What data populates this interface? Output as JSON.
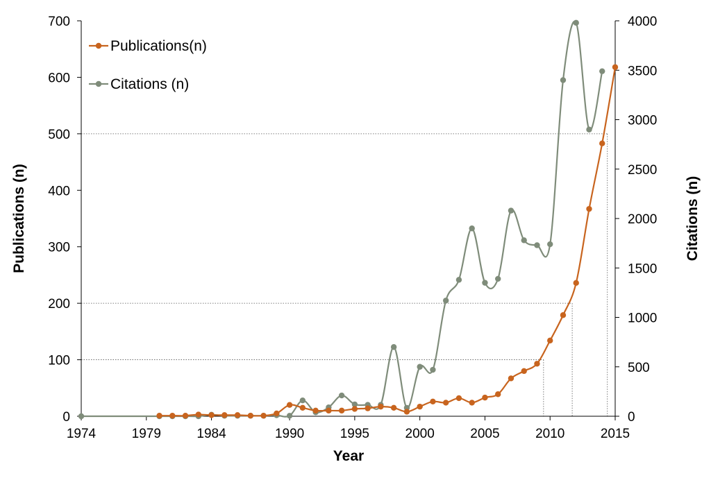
{
  "chart_data": {
    "type": "line",
    "xlabel": "Year",
    "ylabel_left": "Publications (n)",
    "ylabel_right": "Citations (n)",
    "xlim": [
      1974,
      2015
    ],
    "ylim_left": [
      0,
      700
    ],
    "ylim_right": [
      0,
      4000
    ],
    "x_ticks": [
      "1974",
      "1979",
      "1984",
      "1990",
      "1995",
      "2000",
      "2005",
      "2010",
      "2015"
    ],
    "y_ticks_left": [
      "0",
      "100",
      "200",
      "300",
      "400",
      "500",
      "600",
      "700"
    ],
    "y_ticks_right": [
      "0",
      "500",
      "1000",
      "1500",
      "2000",
      "2500",
      "3000",
      "3500",
      "4000"
    ],
    "legend_position": "top-left",
    "grid": false,
    "series": [
      {
        "name": "Publications(n)",
        "axis": "left",
        "color": "#c8641e",
        "x": [
          1980,
          1981,
          1982,
          1983,
          1984,
          1985,
          1986,
          1987,
          1988,
          1989,
          1990,
          1991,
          1992,
          1993,
          1994,
          1995,
          1996,
          1997,
          1998,
          1999,
          2000,
          2001,
          2002,
          2003,
          2004,
          2005,
          2006,
          2007,
          2008,
          2009,
          2010,
          2011,
          2012,
          2013,
          2014,
          2015
        ],
        "values": [
          1,
          1,
          1,
          3,
          2,
          2,
          2,
          1,
          1,
          5,
          20,
          15,
          10,
          10,
          10,
          13,
          14,
          17,
          15,
          8,
          17,
          26,
          24,
          32,
          24,
          33,
          39,
          67,
          80,
          93,
          134,
          179,
          236,
          367,
          483,
          618
        ]
      },
      {
        "name": "Citations (n)",
        "axis": "right",
        "color": "#7f8c7a",
        "x": [
          1974,
          1980,
          1981,
          1982,
          1983,
          1984,
          1985,
          1986,
          1987,
          1988,
          1989,
          1990,
          1991,
          1992,
          1993,
          1994,
          1995,
          1996,
          1997,
          1998,
          1999,
          2000,
          2001,
          2002,
          2003,
          2004,
          2005,
          2006,
          2007,
          2008,
          2009,
          2010,
          2011,
          2012,
          2013,
          2014
        ],
        "values": [
          0,
          0,
          0,
          0,
          0,
          15,
          5,
          5,
          5,
          5,
          10,
          5,
          160,
          40,
          90,
          210,
          120,
          115,
          115,
          700,
          85,
          500,
          470,
          1170,
          1380,
          1900,
          1350,
          1390,
          2080,
          1780,
          1730,
          1740,
          3400,
          3980,
          2900,
          3490
        ]
      }
    ],
    "guide_lines": [
      {
        "y": 100,
        "x": 2009.5
      },
      {
        "y": 200,
        "x": 2011.7
      },
      {
        "y": 500,
        "x": 2014.4
      }
    ]
  }
}
